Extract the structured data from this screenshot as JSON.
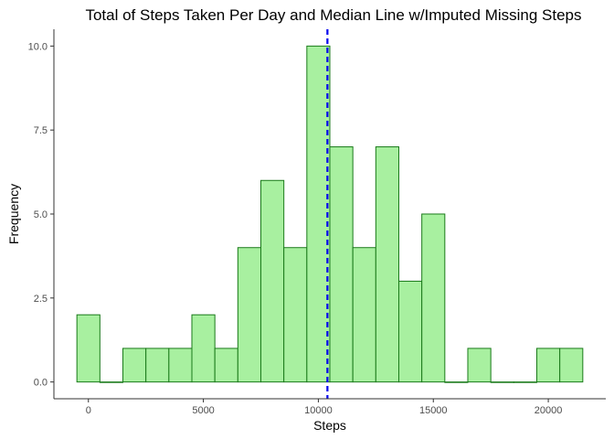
{
  "chart_data": {
    "type": "bar",
    "title": "Total of Steps Taken Per Day and Median Line w/Imputed Missing Steps",
    "xlabel": "Steps",
    "ylabel": "Frequency",
    "x_range": [
      -1500,
      22500
    ],
    "ylim": [
      -0.5,
      10.5
    ],
    "x_ticks": [
      0,
      5000,
      10000,
      15000,
      20000
    ],
    "x_tick_labels": [
      "0",
      "5000",
      "10000",
      "15000",
      "20000"
    ],
    "y_ticks": [
      0,
      2.5,
      5,
      7.5,
      10
    ],
    "y_tick_labels": [
      "0.0",
      "2.5",
      "5.0",
      "7.5",
      "10.0"
    ],
    "bin_width": 1000,
    "bin_centers": [
      0,
      1000,
      2000,
      3000,
      4000,
      5000,
      6000,
      7000,
      8000,
      9000,
      10000,
      11000,
      12000,
      13000,
      14000,
      15000,
      16000,
      17000,
      18000,
      19000,
      20000,
      21000
    ],
    "values": [
      2,
      0,
      1,
      1,
      1,
      2,
      1,
      4,
      6,
      4,
      10,
      7,
      4,
      7,
      3,
      5,
      0,
      1,
      0,
      0,
      1,
      1
    ],
    "median_line": 10395,
    "grid": false,
    "colors": {
      "bar_fill": "#a8f0a0",
      "bar_stroke": "#1a7a1a",
      "median_line": "#0000ee",
      "axis": "#333333",
      "tick_text": "#4d4d4d"
    }
  }
}
